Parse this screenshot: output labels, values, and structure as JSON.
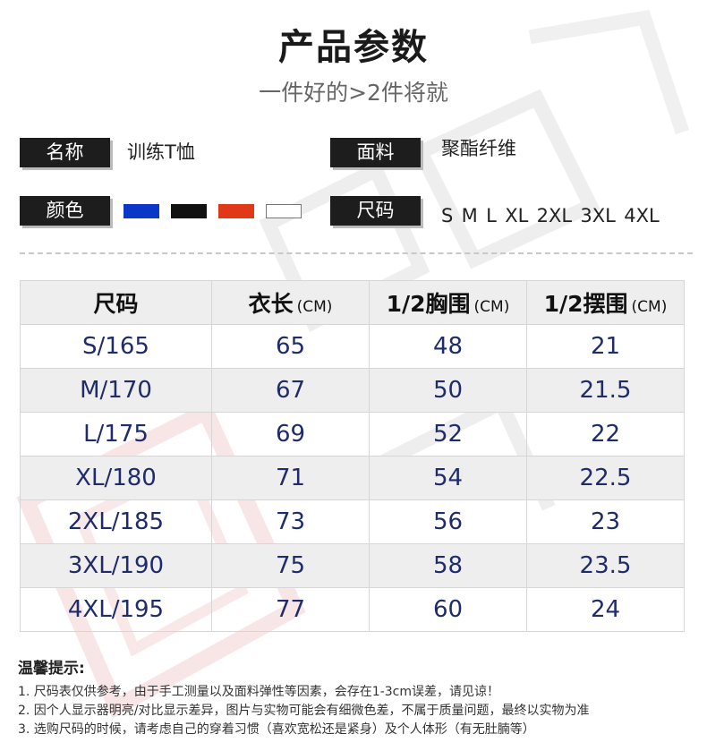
{
  "header": {
    "title": "产品参数",
    "subtitle": "一件好的>2件将就"
  },
  "specs": {
    "name_label": "名称",
    "name_value": "训练T恤",
    "fabric_label": "面料",
    "fabric_value": "聚酯纤维",
    "color_label": "颜色",
    "colors": [
      "#0a37c8",
      "#111111",
      "#e0391a",
      "#ffffff"
    ],
    "size_label": "尺码",
    "size_value": "S  M  L  XL  2XL  3XL  4XL"
  },
  "size_table": {
    "headers": [
      {
        "label": "尺码",
        "unit": ""
      },
      {
        "label": "衣长",
        "unit": "(CM)"
      },
      {
        "label": "1/2胸围",
        "unit": "(CM)"
      },
      {
        "label": "1/2摆围",
        "unit": "(CM)"
      }
    ],
    "rows": [
      [
        "S/165",
        "65",
        "48",
        "21"
      ],
      [
        "M/170",
        "67",
        "50",
        "21.5"
      ],
      [
        "L/175",
        "69",
        "52",
        "22"
      ],
      [
        "XL/180",
        "71",
        "54",
        "22.5"
      ],
      [
        "2XL/185",
        "73",
        "56",
        "23"
      ],
      [
        "3XL/190",
        "75",
        "58",
        "23.5"
      ],
      [
        "4XL/195",
        "77",
        "60",
        "24"
      ]
    ]
  },
  "notes": {
    "heading": "温馨提示:",
    "lines": [
      "1. 尺码表仅供参考，由于手工测量以及面料弹性等因素，会存在1-3cm误差，请见谅！",
      "2. 因个人显示器明亮/对比显示差异，图片与实物可能会有细微色差，不属于质量问题，最终以实物为准",
      "3. 选购尺码的时候，请考虑自己的穿着习惯（喜欢宽松还是紧身）及个人体形（有无肚腩等）"
    ]
  }
}
